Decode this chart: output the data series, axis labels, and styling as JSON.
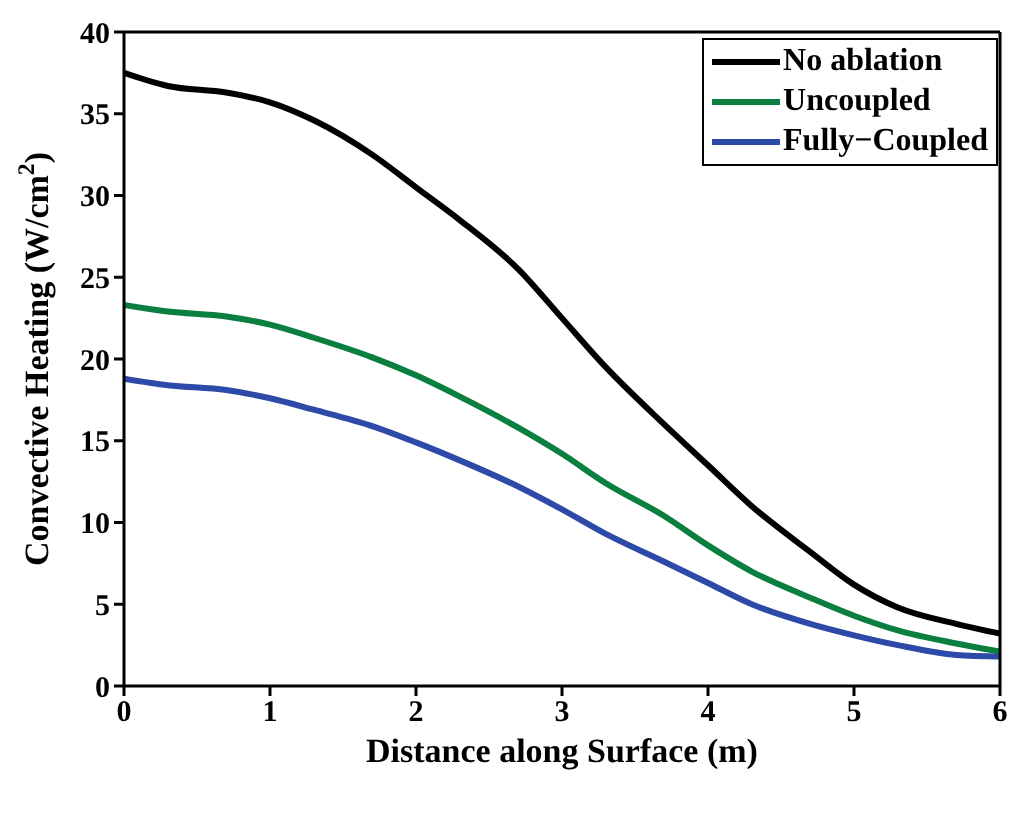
{
  "chart_data": {
    "type": "line",
    "xlabel": "Distance along Surface (m)",
    "ylabel": "Convective Heating (W/cm$^{2}$)",
    "x": [
      0,
      0.3,
      0.7,
      1,
      1.3,
      1.7,
      2,
      2.3,
      2.7,
      3,
      3.3,
      3.7,
      4,
      4.3,
      4.7,
      5,
      5.3,
      5.7,
      6
    ],
    "series": [
      {
        "name": "No ablation",
        "color": "#000000",
        "values": [
          37.5,
          36.7,
          36.3,
          35.7,
          34.6,
          32.5,
          30.5,
          28.5,
          25.5,
          22.5,
          19.5,
          16,
          13.5,
          11,
          8.2,
          6.2,
          4.8,
          3.8,
          3.2
        ]
      },
      {
        "name": "Uncoupled",
        "color": "#0a7f3f",
        "values": [
          23.3,
          22.9,
          22.6,
          22.1,
          21.3,
          20.1,
          19,
          17.7,
          15.8,
          14.2,
          12.4,
          10.4,
          8.6,
          7,
          5.4,
          4.3,
          3.4,
          2.6,
          2.1
        ]
      },
      {
        "name": "Fully−Coupled",
        "color": "#2e4aa8",
        "values": [
          18.8,
          18.4,
          18.1,
          17.6,
          16.9,
          15.9,
          14.9,
          13.8,
          12.2,
          10.8,
          9.3,
          7.6,
          6.3,
          5,
          3.8,
          3.1,
          2.5,
          1.9,
          1.8
        ]
      }
    ],
    "xlim": [
      0,
      6
    ],
    "xticks": [
      0,
      1,
      2,
      3,
      4,
      5,
      6
    ],
    "ylim": [
      0,
      40
    ],
    "yticks": [
      0,
      5,
      10,
      15,
      20,
      25,
      30,
      35,
      40
    ],
    "grid": false,
    "legend": "top right",
    "marker": "none",
    "line_style": "solid"
  }
}
